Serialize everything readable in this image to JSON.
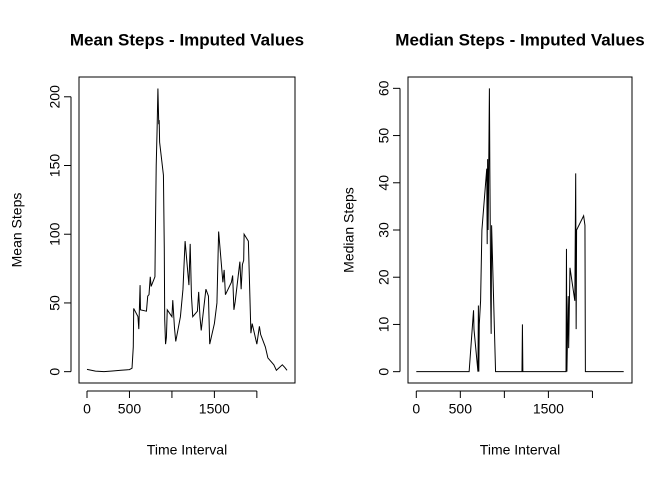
{
  "chart_data": [
    {
      "type": "line",
      "title": "Mean Steps - Imputed Values",
      "x_label": "Time Interval",
      "y_label": "Mean Steps",
      "color": "#000000",
      "x": [
        0,
        100,
        200,
        300,
        400,
        500,
        530,
        545,
        550,
        600,
        610,
        620,
        625,
        630,
        700,
        715,
        730,
        745,
        755,
        800,
        805,
        815,
        825,
        835,
        845,
        850,
        855,
        900,
        910,
        915,
        925,
        935,
        945,
        1000,
        1010,
        1030,
        1045,
        1100,
        1130,
        1155,
        1200,
        1215,
        1230,
        1245,
        1300,
        1315,
        1330,
        1345,
        1400,
        1430,
        1445,
        1500,
        1530,
        1550,
        1600,
        1615,
        1630,
        1700,
        1715,
        1730,
        1745,
        1800,
        1815,
        1830,
        1845,
        1850,
        1900,
        1930,
        1945,
        2000,
        2030,
        2045,
        2100,
        2130,
        2200,
        2230,
        2300,
        2330,
        2355
      ],
      "values": [
        1.7,
        0.4,
        0,
        0.5,
        1,
        1.5,
        2.5,
        18,
        46,
        40,
        31,
        52,
        63,
        45,
        44,
        55,
        56,
        69,
        62,
        69,
        100,
        150,
        175,
        206,
        180,
        183,
        167,
        143,
        90,
        38,
        20,
        25,
        45,
        40,
        52,
        32,
        22,
        40,
        60,
        95,
        63,
        93,
        55,
        40,
        44,
        58,
        40,
        30,
        60,
        55,
        20,
        35,
        50,
        102,
        65,
        74,
        56,
        65,
        70,
        45,
        51,
        80,
        60,
        78,
        81,
        100,
        95,
        28,
        35,
        20,
        33,
        27,
        18,
        10,
        5,
        1,
        5,
        3,
        1
      ],
      "xlim": [
        -94.2,
        2449.2
      ],
      "ylim": [
        -8.25,
        214.4
      ],
      "xticks": [
        0,
        500,
        {
          "value": 1000,
          "label": null
        },
        1500,
        {
          "value": 2000,
          "label": null
        }
      ],
      "yticks": [
        0,
        50,
        100,
        150,
        200
      ]
    },
    {
      "type": "line",
      "title": "Median Steps - Imputed Values",
      "x_label": "Time Interval",
      "y_label": "Median Steps",
      "color": "#000000",
      "x": [
        0,
        600,
        650,
        655,
        700,
        705,
        710,
        715,
        730,
        745,
        800,
        805,
        810,
        815,
        820,
        830,
        835,
        840,
        845,
        850,
        855,
        900,
        1200,
        1205,
        1210,
        1700,
        1705,
        1710,
        1725,
        1730,
        1745,
        1800,
        1810,
        1815,
        1820,
        1900,
        1915,
        1920,
        2355
      ],
      "values": [
        0,
        0,
        13,
        9,
        0,
        14,
        0,
        10,
        15,
        30,
        43,
        27,
        45,
        30,
        38,
        60,
        43,
        30,
        15,
        8,
        31,
        0,
        0,
        10,
        0,
        0,
        26,
        0,
        16,
        5,
        22,
        15,
        42,
        9,
        30,
        33,
        31,
        0,
        0
      ],
      "xlim": [
        -94.2,
        2449.2
      ],
      "ylim": [
        -2.4,
        62.4
      ],
      "xticks": [
        0,
        500,
        {
          "value": 1000,
          "label": null
        },
        1500,
        {
          "value": 2000,
          "label": null
        }
      ],
      "yticks": [
        0,
        10,
        20,
        30,
        40,
        50,
        60
      ]
    }
  ]
}
